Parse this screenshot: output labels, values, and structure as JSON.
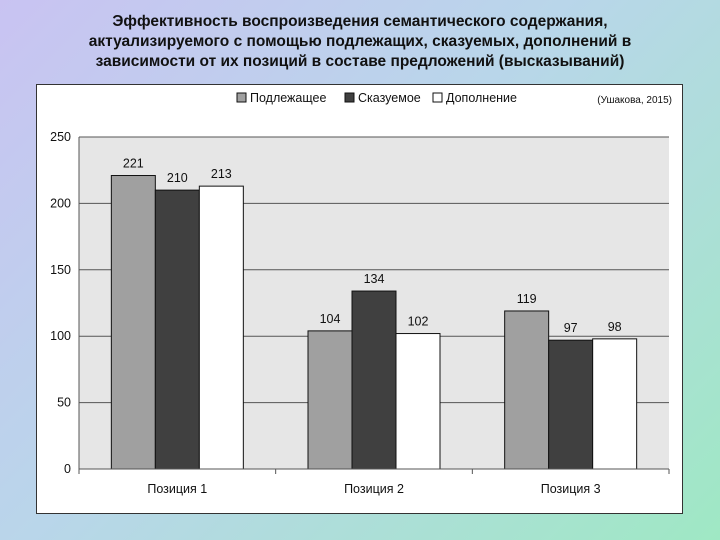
{
  "title_lines": [
    "Эффективность воспроизведения семантического содержания,",
    "актуализируемого с помощью подлежащих, сказуемых, дополнений в",
    "зависимости от их позиций в составе предложений (высказываний)"
  ],
  "chart_data": {
    "type": "bar",
    "title": "",
    "xlabel": "",
    "ylabel": "",
    "annotation": "(Ушакова, 2015)",
    "categories": [
      "Позиция 1",
      "Позиция 2",
      "Позиция 3"
    ],
    "series": [
      {
        "name": "Подлежащее",
        "values": [
          221,
          104,
          119
        ],
        "color": "#a0a0a0"
      },
      {
        "name": "Сказуемое",
        "values": [
          210,
          134,
          97
        ],
        "color": "#404040"
      },
      {
        "name": "Дополнение",
        "values": [
          213,
          102,
          98
        ],
        "color": "#ffffff"
      }
    ],
    "ylim": [
      0,
      250
    ],
    "yticks": [
      0,
      50,
      100,
      150,
      200,
      250
    ],
    "grid": true,
    "legend_position": "top",
    "plot_background": "#e6e6e6"
  }
}
